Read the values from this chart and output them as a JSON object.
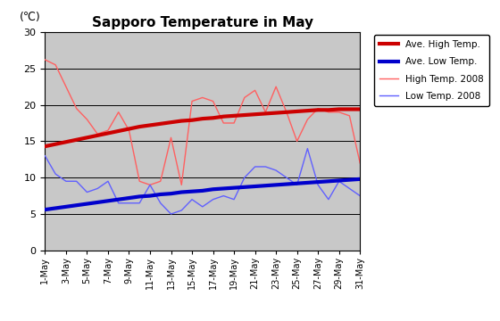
{
  "title": "Sapporo Temperature in May",
  "ylabel": "(℃)",
  "days": [
    1,
    2,
    3,
    4,
    5,
    6,
    7,
    8,
    9,
    10,
    11,
    12,
    13,
    14,
    15,
    16,
    17,
    18,
    19,
    20,
    21,
    22,
    23,
    24,
    25,
    26,
    27,
    28,
    29,
    30,
    31
  ],
  "ave_high": [
    14.3,
    14.6,
    14.9,
    15.2,
    15.5,
    15.8,
    16.1,
    16.4,
    16.7,
    17.0,
    17.2,
    17.4,
    17.6,
    17.8,
    17.9,
    18.1,
    18.2,
    18.4,
    18.5,
    18.6,
    18.7,
    18.8,
    18.9,
    19.0,
    19.1,
    19.2,
    19.3,
    19.3,
    19.4,
    19.4,
    19.4
  ],
  "ave_low": [
    5.6,
    5.8,
    6.0,
    6.2,
    6.4,
    6.6,
    6.8,
    7.0,
    7.2,
    7.4,
    7.5,
    7.7,
    7.8,
    8.0,
    8.1,
    8.2,
    8.4,
    8.5,
    8.6,
    8.7,
    8.8,
    8.9,
    9.0,
    9.1,
    9.2,
    9.3,
    9.4,
    9.5,
    9.6,
    9.7,
    9.8
  ],
  "high_2008": [
    26.2,
    25.5,
    22.5,
    19.5,
    18.0,
    16.0,
    16.5,
    19.0,
    16.5,
    9.5,
    9.0,
    9.5,
    15.5,
    9.0,
    20.5,
    21.0,
    20.5,
    17.5,
    17.5,
    21.0,
    22.0,
    19.0,
    22.5,
    19.0,
    15.0,
    18.0,
    19.5,
    19.0,
    19.0,
    18.5,
    12.0
  ],
  "low_2008": [
    13.0,
    10.5,
    9.5,
    9.5,
    8.0,
    8.5,
    9.5,
    6.5,
    6.5,
    6.5,
    9.0,
    6.5,
    5.0,
    5.5,
    7.0,
    6.0,
    7.0,
    7.5,
    7.0,
    10.0,
    11.5,
    11.5,
    11.0,
    10.0,
    9.0,
    14.0,
    9.0,
    7.0,
    9.5,
    8.5,
    7.5
  ],
  "ylim": [
    0,
    30
  ],
  "yticks": [
    0,
    5,
    10,
    15,
    20,
    25,
    30
  ],
  "plot_bg_color": "#c8c8c8",
  "ave_high_color": "#cc0000",
  "ave_low_color": "#0000cc",
  "high_2008_color": "#ff6060",
  "low_2008_color": "#6060ff",
  "grid_color": "#000000",
  "legend_labels": [
    "Ave. High Temp.",
    "Ave. Low Temp.",
    "High Temp. 2008",
    "Low Temp. 2008"
  ]
}
